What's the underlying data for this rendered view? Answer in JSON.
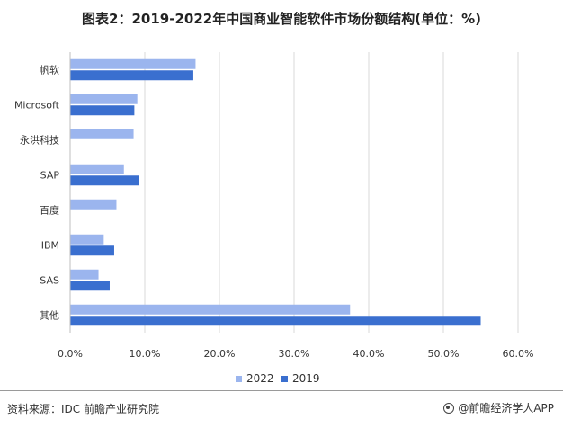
{
  "title": "图表2：2019-2022年中国商业智能软件市场份额结构(单位：%)",
  "source": "资料来源：IDC 前瞻产业研究院",
  "brand": "@前瞻经济学人APP",
  "colors": {
    "s2022": "#9bb5ee",
    "s2019": "#3a6fcf",
    "grid": "#d9d9d9",
    "axis": "#bfbfbf"
  },
  "chart_data": {
    "type": "bar",
    "orientation": "horizontal",
    "categories": [
      "帆软",
      "Microsoft",
      "永洪科技",
      "SAP",
      "百度",
      "IBM",
      "SAS",
      "其他"
    ],
    "series": [
      {
        "name": "2022",
        "values": [
          16.8,
          9.0,
          8.5,
          7.2,
          6.2,
          4.5,
          3.8,
          37.5
        ]
      },
      {
        "name": "2019",
        "values": [
          16.5,
          8.6,
          null,
          9.2,
          null,
          5.9,
          5.3,
          55.0
        ]
      }
    ],
    "xlim": [
      0,
      60
    ],
    "xticks": [
      "0.0%",
      "10.0%",
      "20.0%",
      "30.0%",
      "40.0%",
      "50.0%",
      "60.0%"
    ],
    "grid": true,
    "legend": "bottom"
  }
}
